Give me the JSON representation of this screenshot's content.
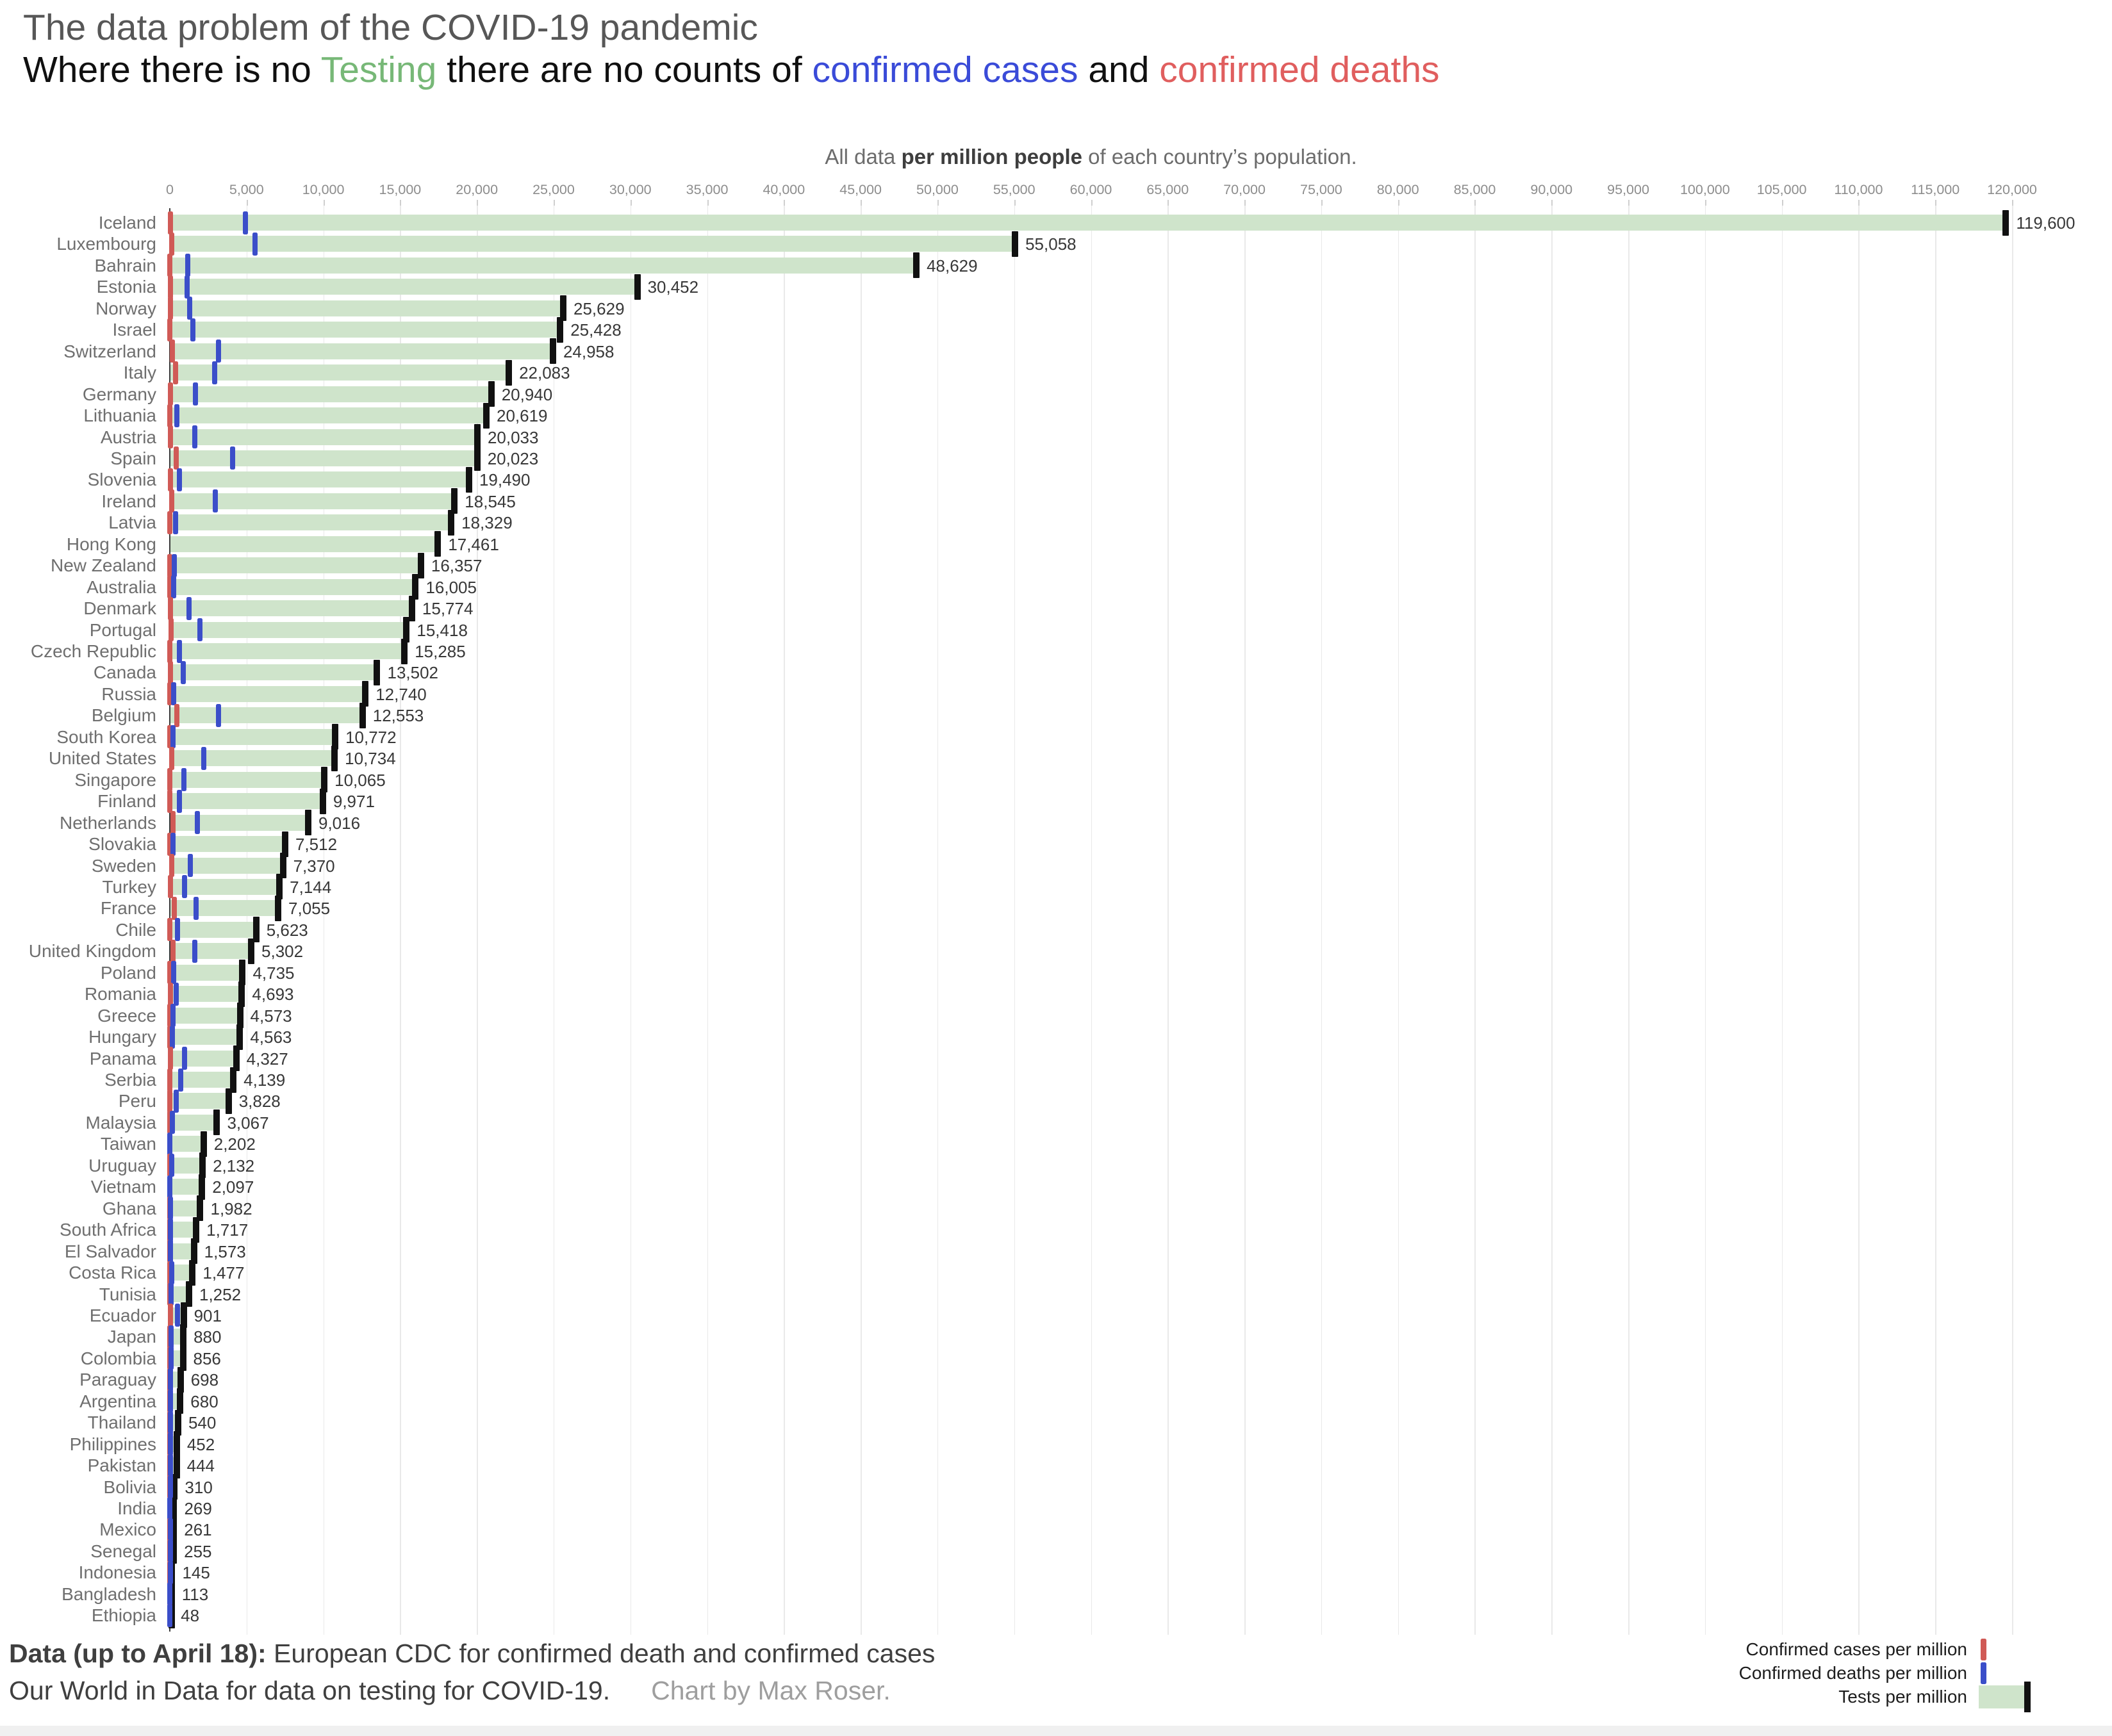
{
  "header": {
    "title": "The data problem of the COVID-19 pandemic",
    "subtitle_parts": [
      {
        "text": "Where there is no ",
        "color": "#101010"
      },
      {
        "text": "Testing",
        "color": "#77b877"
      },
      {
        "text": " there are no counts of ",
        "color": "#101010"
      },
      {
        "text": "confirmed cases",
        "color": "#3a4bd8"
      },
      {
        "text": " and ",
        "color": "#101010"
      },
      {
        "text": "confirmed deaths",
        "color": "#e05e5e"
      }
    ],
    "note": {
      "pre": "All data ",
      "bold": "per million people",
      "post": " of each country’s population."
    }
  },
  "colors": {
    "title": "#575757",
    "subtitle": "#101010",
    "note": "#6c6c6c",
    "note_dark": "#3e3e3e",
    "axis_label": "#8d8d8d",
    "gridline": "#e9e9e9",
    "axis_line": "#3b3b3b",
    "tests_bar": "#cfe4cb",
    "tests_cap": "#111111",
    "red_tick": "#d05a56",
    "blue_tick": "#3b4ec9",
    "country_label": "#6f6f6f",
    "value_label": "#383838",
    "legend_text": "#1d1d1d",
    "footer_text": "#3f3f3f",
    "credit_text": "#9e9e9e",
    "bottom_strip": "#f0f0f0"
  },
  "legend": {
    "items": [
      {
        "label": "Confirmed cases per million",
        "marker": "red-tick"
      },
      {
        "label": "Confirmed deaths per million",
        "marker": "blue-tick"
      },
      {
        "label": "Tests per million",
        "marker": "green-bar-black-cap"
      }
    ]
  },
  "footer": {
    "line1_bold": "Data (up to April 18):",
    "line1_rest": " European CDC for confirmed death and confirmed cases",
    "line2": "Our World in Data for data on testing for COVID-19.",
    "credit": "Chart by Max Roser."
  },
  "chart_data": {
    "type": "bar",
    "orientation": "horizontal",
    "title": "The data problem of the COVID-19 pandemic",
    "subtitle": "Where there is no Testing there are no counts of confirmed cases and confirmed deaths",
    "note": "All data per million people of each country’s population.",
    "x_axis": {
      "min": 0,
      "max": 120000,
      "tick_step": 5000,
      "ticks": [
        0,
        5000,
        10000,
        15000,
        20000,
        25000,
        30000,
        35000,
        40000,
        45000,
        50000,
        55000,
        60000,
        65000,
        70000,
        75000,
        80000,
        85000,
        90000,
        95000,
        100000,
        105000,
        110000,
        115000,
        120000
      ]
    },
    "grid": true,
    "legend_position": "bottom-right",
    "series_note": "tests = green bar with black end cap (labeled value); red_tick and blue_tick are estimated marker positions per million (red = confirmed cases per legend, blue = confirmed deaths per legend)",
    "rows": [
      {
        "country": "Iceland",
        "tests": 119600,
        "red_tick": 30,
        "blue_tick": 4940
      },
      {
        "country": "Luxembourg",
        "tests": 55058,
        "red_tick": 117,
        "blue_tick": 5550
      },
      {
        "country": "Bahrain",
        "tests": 48629,
        "red_tick": 4,
        "blue_tick": 1170
      },
      {
        "country": "Estonia",
        "tests": 30452,
        "red_tick": 30,
        "blue_tick": 1120
      },
      {
        "country": "Norway",
        "tests": 25629,
        "red_tick": 30,
        "blue_tick": 1300
      },
      {
        "country": "Israel",
        "tests": 25428,
        "red_tick": 16,
        "blue_tick": 1510
      },
      {
        "country": "Switzerland",
        "tests": 24958,
        "red_tick": 150,
        "blue_tick": 3170
      },
      {
        "country": "Italy",
        "tests": 22083,
        "red_tick": 380,
        "blue_tick": 2910
      },
      {
        "country": "Germany",
        "tests": 20940,
        "red_tick": 52,
        "blue_tick": 1680
      },
      {
        "country": "Lithuania",
        "tests": 20619,
        "red_tick": 15,
        "blue_tick": 440
      },
      {
        "country": "Austria",
        "tests": 20033,
        "red_tick": 49,
        "blue_tick": 1640
      },
      {
        "country": "Spain",
        "tests": 20023,
        "red_tick": 425,
        "blue_tick": 4080
      },
      {
        "country": "Slovenia",
        "tests": 19490,
        "red_tick": 30,
        "blue_tick": 630
      },
      {
        "country": "Ireland",
        "tests": 18545,
        "red_tick": 120,
        "blue_tick": 2950
      },
      {
        "country": "Latvia",
        "tests": 18329,
        "red_tick": 3,
        "blue_tick": 380
      },
      {
        "country": "Hong Kong",
        "tests": 17461,
        "red_tick": null,
        "blue_tick": null
      },
      {
        "country": "New Zealand",
        "tests": 16357,
        "red_tick": 2,
        "blue_tick": 290
      },
      {
        "country": "Australia",
        "tests": 16005,
        "red_tick": 3,
        "blue_tick": 260
      },
      {
        "country": "Denmark",
        "tests": 15774,
        "red_tick": 60,
        "blue_tick": 1240
      },
      {
        "country": "Portugal",
        "tests": 15418,
        "red_tick": 65,
        "blue_tick": 1950
      },
      {
        "country": "Czech Republic",
        "tests": 15285,
        "red_tick": 17,
        "blue_tick": 630
      },
      {
        "country": "Canada",
        "tests": 13502,
        "red_tick": 35,
        "blue_tick": 860
      },
      {
        "country": "Russia",
        "tests": 12740,
        "red_tick": 2,
        "blue_tick": 250
      },
      {
        "country": "Belgium",
        "tests": 12553,
        "red_tick": 470,
        "blue_tick": 3180
      },
      {
        "country": "South Korea",
        "tests": 10772,
        "red_tick": 5,
        "blue_tick": 208
      },
      {
        "country": "United States",
        "tests": 10734,
        "red_tick": 115,
        "blue_tick": 2210
      },
      {
        "country": "Singapore",
        "tests": 10065,
        "red_tick": 2,
        "blue_tick": 900
      },
      {
        "country": "Finland",
        "tests": 9971,
        "red_tick": 16,
        "blue_tick": 640
      },
      {
        "country": "Netherlands",
        "tests": 9016,
        "red_tick": 210,
        "blue_tick": 1790
      },
      {
        "country": "Slovakia",
        "tests": 7512,
        "red_tick": 2,
        "blue_tick": 200
      },
      {
        "country": "Sweden",
        "tests": 7370,
        "red_tick": 140,
        "blue_tick": 1330
      },
      {
        "country": "Turkey",
        "tests": 7144,
        "red_tick": 22,
        "blue_tick": 960
      },
      {
        "country": "France",
        "tests": 7055,
        "red_tick": 280,
        "blue_tick": 1700
      },
      {
        "country": "Chile",
        "tests": 5623,
        "red_tick": 6,
        "blue_tick": 480
      },
      {
        "country": "United Kingdom",
        "tests": 5302,
        "red_tick": 220,
        "blue_tick": 1620
      },
      {
        "country": "Poland",
        "tests": 4735,
        "red_tick": 9,
        "blue_tick": 230
      },
      {
        "country": "Romania",
        "tests": 4693,
        "red_tick": 21,
        "blue_tick": 430
      },
      {
        "country": "Greece",
        "tests": 4573,
        "red_tick": 10,
        "blue_tick": 210
      },
      {
        "country": "Hungary",
        "tests": 4563,
        "red_tick": 18,
        "blue_tick": 180
      },
      {
        "country": "Panama",
        "tests": 4327,
        "red_tick": 37,
        "blue_tick": 980
      },
      {
        "country": "Serbia",
        "tests": 4139,
        "red_tick": 9,
        "blue_tick": 700
      },
      {
        "country": "Peru",
        "tests": 3828,
        "red_tick": 8,
        "blue_tick": 430
      },
      {
        "country": "Malaysia",
        "tests": 3067,
        "red_tick": 3,
        "blue_tick": 160
      },
      {
        "country": "Taiwan",
        "tests": 2202,
        "red_tick": null,
        "blue_tick": 17
      },
      {
        "country": "Uruguay",
        "tests": 2132,
        "red_tick": 3,
        "blue_tick": 140
      },
      {
        "country": "Vietnam",
        "tests": 2097,
        "red_tick": null,
        "blue_tick": 3
      },
      {
        "country": "Ghana",
        "tests": 1982,
        "red_tick": 1,
        "blue_tick": 30
      },
      {
        "country": "South Africa",
        "tests": 1717,
        "red_tick": 1,
        "blue_tick": 50
      },
      {
        "country": "El Salvador",
        "tests": 1573,
        "red_tick": 1,
        "blue_tick": 29
      },
      {
        "country": "Costa Rica",
        "tests": 1477,
        "red_tick": 1,
        "blue_tick": 130
      },
      {
        "country": "Tunisia",
        "tests": 1252,
        "red_tick": 3,
        "blue_tick": 75
      },
      {
        "country": "Ecuador",
        "tests": 901,
        "red_tick": 28,
        "blue_tick": 510
      },
      {
        "country": "Japan",
        "tests": 880,
        "red_tick": 2,
        "blue_tick": 77
      },
      {
        "country": "Colombia",
        "tests": 856,
        "red_tick": 3,
        "blue_tick": 70
      },
      {
        "country": "Paraguay",
        "tests": 698,
        "red_tick": 1,
        "blue_tick": 29
      },
      {
        "country": "Argentina",
        "tests": 680,
        "red_tick": 3,
        "blue_tick": 60
      },
      {
        "country": "Thailand",
        "tests": 540,
        "red_tick": 1,
        "blue_tick": 39
      },
      {
        "country": "Philippines",
        "tests": 452,
        "red_tick": 4,
        "blue_tick": 55
      },
      {
        "country": "Pakistan",
        "tests": 444,
        "red_tick": 1,
        "blue_tick": 36
      },
      {
        "country": "Bolivia",
        "tests": 310,
        "red_tick": 3,
        "blue_tick": 44
      },
      {
        "country": "India",
        "tests": 269,
        "red_tick": 0,
        "blue_tick": 11
      },
      {
        "country": "Mexico",
        "tests": 261,
        "red_tick": 4,
        "blue_tick": 55
      },
      {
        "country": "Senegal",
        "tests": 255,
        "red_tick": 1,
        "blue_tick": 22
      },
      {
        "country": "Indonesia",
        "tests": 145,
        "red_tick": 2,
        "blue_tick": 22
      },
      {
        "country": "Bangladesh",
        "tests": 113,
        "red_tick": 1,
        "blue_tick": 13
      },
      {
        "country": "Ethiopia",
        "tests": 48,
        "red_tick": 0,
        "blue_tick": 1
      }
    ]
  }
}
